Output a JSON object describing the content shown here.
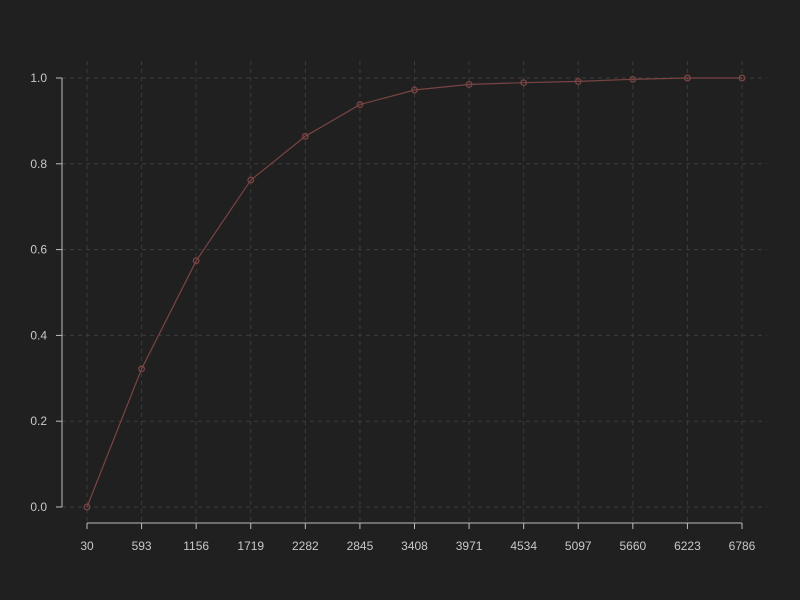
{
  "chart_data": {
    "type": "line",
    "title": "",
    "xlabel": "",
    "ylabel": "",
    "x": [
      30,
      593,
      1156,
      1719,
      2282,
      2845,
      3408,
      3971,
      4534,
      5097,
      5660,
      6223,
      6786
    ],
    "x_tick_labels": [
      "30",
      "593",
      "1156",
      "1719",
      "2282",
      "2845",
      "3408",
      "3971",
      "4534",
      "5097",
      "5660",
      "6223",
      "6786"
    ],
    "y_ticks": [
      0.0,
      0.2,
      0.4,
      0.6,
      0.8,
      1.0
    ],
    "y_tick_labels": [
      "0.0",
      "0.2",
      "0.4",
      "0.6",
      "0.8",
      "1.0"
    ],
    "xlim": [
      30,
      6786
    ],
    "ylim": [
      0.0,
      1.0
    ],
    "series": [
      {
        "values": [
          0.0,
          0.322,
          0.574,
          0.762,
          0.864,
          0.938,
          0.972,
          0.985,
          0.989,
          0.992,
          0.997,
          1.0,
          1.0
        ],
        "color": "#7a4444",
        "marker": "circle-open"
      }
    ],
    "grid": true,
    "legend": "none"
  },
  "colors": {
    "background": "#202020",
    "grid": "#3c3c3c",
    "axis": "#bdbdbd",
    "tick_text": "#c8c8c8",
    "line": "#7a4444"
  }
}
